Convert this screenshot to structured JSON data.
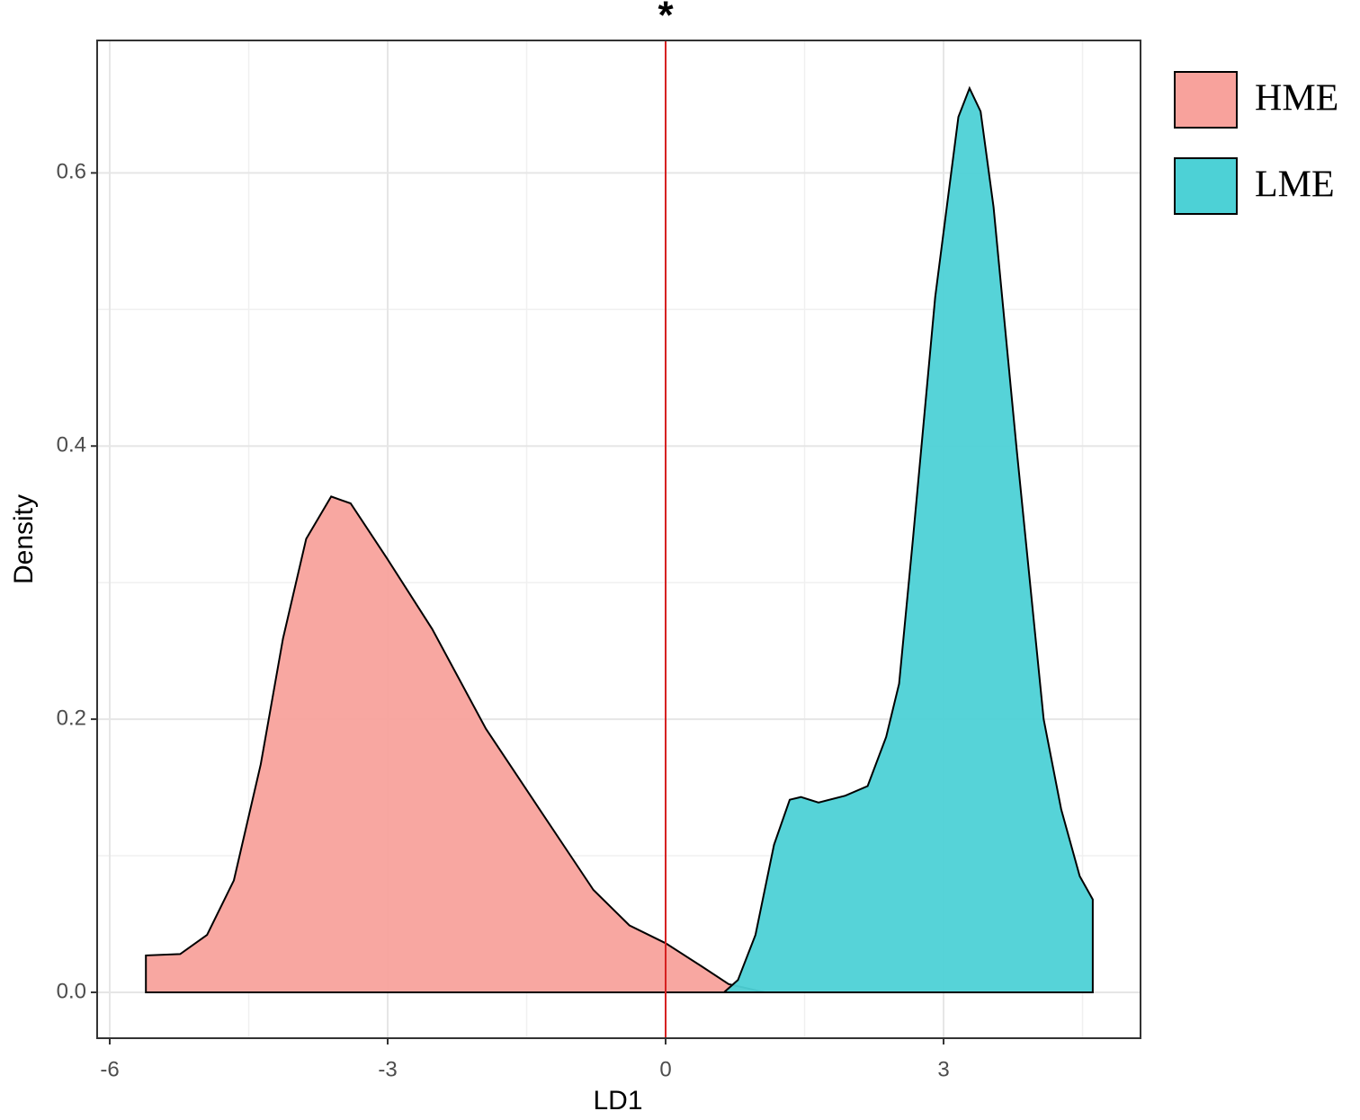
{
  "chart_data": {
    "type": "area",
    "title": "*",
    "x_label": "LD1",
    "y_label": "Density",
    "xlim": [
      -6.136,
      5.126
    ],
    "ylim": [
      -0.0336,
      0.697
    ],
    "xticks": [
      -6,
      -3,
      0,
      3
    ],
    "yticks": [
      {
        "value": 0,
        "label": "0.0"
      },
      0.2,
      0.4,
      0.6
    ],
    "x_minor_grid": [
      -4.5,
      -1.5,
      1.5,
      4.5
    ],
    "y_minor_grid": [
      0.1,
      0.3,
      0.5
    ],
    "grid": true,
    "vline": {
      "x": 0,
      "color": "#d62020"
    },
    "legend": "right",
    "series": [
      {
        "name": "HME",
        "color": "#f8a29c",
        "x": [
          -5.61,
          -5.61,
          -5.24,
          -4.95,
          -4.66,
          -4.37,
          -4.13,
          -3.88,
          -3.61,
          -3.4,
          -3.01,
          -2.52,
          -1.94,
          -1.36,
          -0.78,
          -0.39,
          0,
          0.39,
          0.68,
          1.07
        ],
        "values": [
          0,
          0.027,
          0.028,
          0.042,
          0.082,
          0.167,
          0.259,
          0.332,
          0.363,
          0.358,
          0.318,
          0.266,
          0.193,
          0.134,
          0.075,
          0.049,
          0.036,
          0.019,
          0.006,
          0
        ]
      },
      {
        "name": "LME",
        "color": "#4dd1d6",
        "x": [
          0.63,
          0.78,
          0.97,
          1.17,
          1.34,
          1.46,
          1.65,
          1.94,
          2.18,
          2.38,
          2.52,
          2.67,
          2.91,
          3.16,
          3.28,
          3.4,
          3.54,
          3.79,
          4.08,
          4.27,
          4.47,
          4.61,
          4.61
        ],
        "values": [
          0,
          0.009,
          0.042,
          0.108,
          0.141,
          0.143,
          0.139,
          0.144,
          0.151,
          0.187,
          0.226,
          0.332,
          0.509,
          0.641,
          0.662,
          0.645,
          0.575,
          0.397,
          0.2,
          0.134,
          0.085,
          0.068,
          0
        ]
      }
    ]
  }
}
